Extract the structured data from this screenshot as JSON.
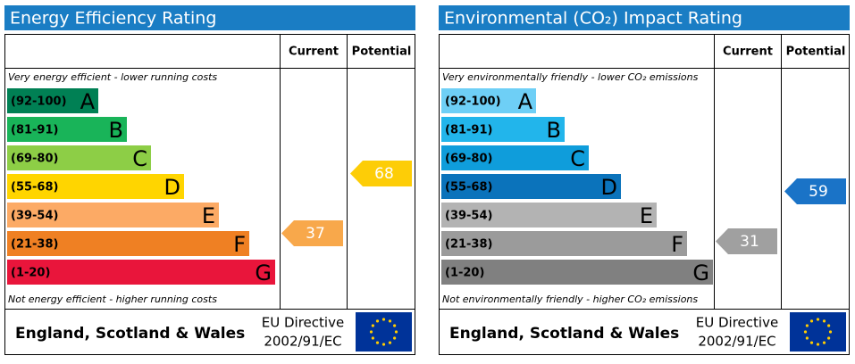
{
  "panels": [
    {
      "title": "Energy Efficiency Rating",
      "columns": [
        "Current",
        "Potential"
      ],
      "top_note": "Very energy efficient - lower running costs",
      "bottom_note": "Not energy efficient - higher running costs",
      "bands": [
        {
          "range": "(92-100)",
          "letter": "A",
          "color": "#008054"
        },
        {
          "range": "(81-91)",
          "letter": "B",
          "color": "#19b459"
        },
        {
          "range": "(69-80)",
          "letter": "C",
          "color": "#8dce46"
        },
        {
          "range": "(55-68)",
          "letter": "D",
          "color": "#ffd500"
        },
        {
          "range": "(39-54)",
          "letter": "E",
          "color": "#fcaa65"
        },
        {
          "range": "(21-38)",
          "letter": "F",
          "color": "#ef8023"
        },
        {
          "range": "(1-20)",
          "letter": "G",
          "color": "#e9153b"
        }
      ],
      "current": {
        "value": 37,
        "color": "#f8a84b"
      },
      "potential": {
        "value": 68,
        "color": "#fdcd07"
      },
      "footer": {
        "region": "England, Scotland & Wales",
        "directive": [
          "EU Directive",
          "2002/91/EC"
        ]
      }
    },
    {
      "title": "Environmental (CO₂) Impact Rating",
      "columns": [
        "Current",
        "Potential"
      ],
      "top_note": "Very environmentally friendly - lower CO₂ emissions",
      "bottom_note": "Not environmentally friendly - higher CO₂ emissions",
      "bands": [
        {
          "range": "(92-100)",
          "letter": "A",
          "color": "#6ecff6"
        },
        {
          "range": "(81-91)",
          "letter": "B",
          "color": "#22b5eb"
        },
        {
          "range": "(69-80)",
          "letter": "C",
          "color": "#0f9ddb"
        },
        {
          "range": "(55-68)",
          "letter": "D",
          "color": "#0b73bb"
        },
        {
          "range": "(39-54)",
          "letter": "E",
          "color": "#b3b3b3"
        },
        {
          "range": "(21-38)",
          "letter": "F",
          "color": "#9b9b9b"
        },
        {
          "range": "(1-20)",
          "letter": "G",
          "color": "#808080"
        }
      ],
      "current": {
        "value": 31,
        "color": "#a0a0a0"
      },
      "potential": {
        "value": 59,
        "color": "#1a73c7"
      },
      "footer": {
        "region": "England, Scotland & Wales",
        "directive": [
          "EU Directive",
          "2002/91/EC"
        ]
      }
    }
  ]
}
